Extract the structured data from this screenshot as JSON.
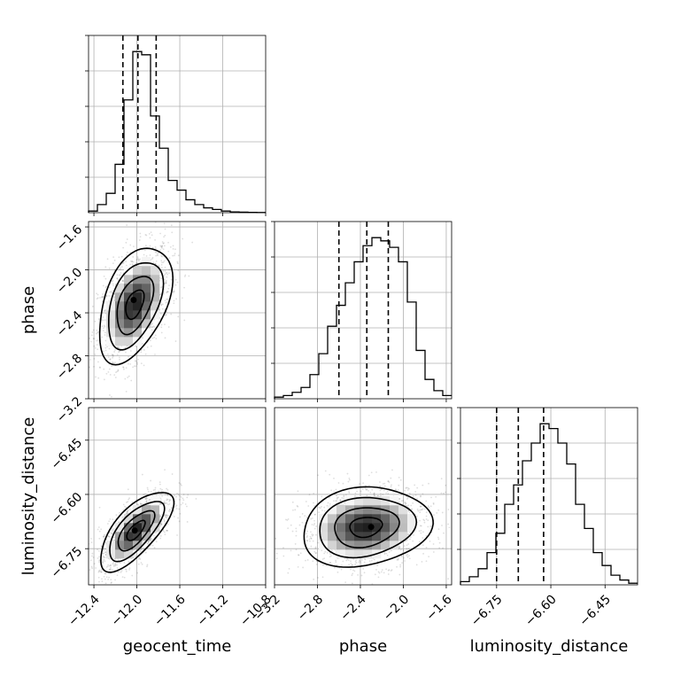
{
  "chart_data": {
    "type": "corner",
    "parameters": [
      "geocent_time",
      "phase",
      "luminosity_distance"
    ],
    "xlabels": [
      "geocent_time",
      "phase",
      "luminosity_distance"
    ],
    "ylabels": [
      "",
      "phase",
      "luminosity_distance"
    ],
    "ranges": {
      "geocent_time": [
        -12.45,
        -10.8
      ],
      "phase": [
        -3.2,
        -1.55
      ],
      "luminosity_distance": [
        -6.85,
        -6.36
      ]
    },
    "ticks": {
      "geocent_time": [
        -12.4,
        -12.0,
        -11.6,
        -11.2,
        -10.8
      ],
      "phase": [
        -3.2,
        -2.8,
        -2.4,
        -2.0,
        -1.6
      ],
      "luminosity_distance": [
        -6.75,
        -6.6,
        -6.45
      ]
    },
    "tick_labels": {
      "geocent_time": [
        "−12.4",
        "−12.0",
        "−11.6",
        "−11.2",
        "−10.8"
      ],
      "phase": [
        "−3.2",
        "−2.8",
        "−2.4",
        "−2.0",
        "−1.6"
      ],
      "luminosity_distance": [
        "−6.75",
        "−6.60",
        "−6.45"
      ]
    },
    "diagonal": [
      {
        "parameter": "geocent_time",
        "bin_edges_range": [
          -12.45,
          -10.8
        ],
        "counts": [
          1,
          5,
          12,
          30,
          70,
          100,
          98,
          60,
          40,
          20,
          14,
          8,
          5,
          3,
          2,
          1,
          0.5,
          0.3,
          0.2,
          0.1
        ],
        "quantiles": [
          -12.13,
          -11.99,
          -11.82
        ]
      },
      {
        "parameter": "phase",
        "bin_edges_range": [
          -3.2,
          -1.55
        ],
        "counts": [
          1,
          2,
          4,
          7,
          15,
          28,
          45,
          58,
          72,
          85,
          95,
          100,
          98,
          94,
          85,
          60,
          30,
          12,
          5,
          2
        ],
        "quantiles": [
          -2.6,
          -2.34,
          -2.14
        ]
      },
      {
        "parameter": "luminosity_distance",
        "bin_edges_range": [
          -6.85,
          -6.36
        ],
        "counts": [
          2,
          5,
          10,
          20,
          32,
          50,
          62,
          77,
          88,
          100,
          97,
          88,
          75,
          50,
          35,
          20,
          12,
          6,
          3,
          1
        ],
        "quantiles": [
          -6.75,
          -6.69,
          -6.62
        ]
      }
    ],
    "pairs": [
      {
        "x": "geocent_time",
        "y": "phase",
        "center": [
          -12.02,
          -2.32
        ],
        "std": [
          0.17,
          0.27
        ],
        "correlation": 0.45,
        "peak": [
          -12.03,
          -2.28
        ]
      },
      {
        "x": "geocent_time",
        "y": "luminosity_distance",
        "center": [
          -12.01,
          -6.7
        ],
        "std": [
          0.17,
          0.055
        ],
        "correlation": 0.7,
        "peak": [
          -12.02,
          -6.7
        ]
      },
      {
        "x": "phase",
        "y": "luminosity_distance",
        "center": [
          -2.35,
          -6.69
        ],
        "std": [
          0.3,
          0.055
        ],
        "correlation": 0.15,
        "peak": [
          -2.3,
          -6.69
        ]
      }
    ],
    "contour_levels_sigma": [
      0.5,
      1.0,
      1.5,
      2.0
    ],
    "grid": true
  }
}
